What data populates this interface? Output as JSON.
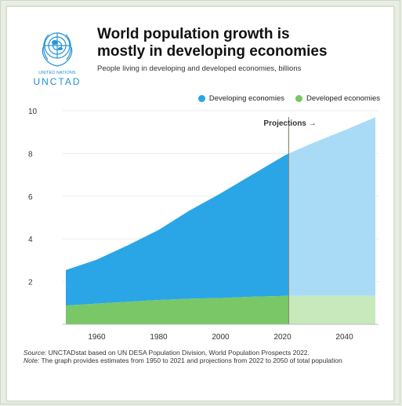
{
  "logo": {
    "org_line": "UNITED NATIONS",
    "org_name": "UNCTAD"
  },
  "title_line1": "World population growth is",
  "title_line2": "mostly in developing economies",
  "subtitle": "People living in developing and developed economies, billions",
  "legend": {
    "developing": "Developing economies",
    "developed": "Developed economies"
  },
  "projections_label": "Projections →",
  "source_label": "Source:",
  "source_text": " UNCTADstat based on UN DESA Population Division, World Population Prospects 2022.",
  "note_label": "Note:",
  "note_text": " The graph provides estimates from 1950 to 2021 and projections from 2022 to 2050 of total population",
  "colors": {
    "developing": "#2aa6e6",
    "developing_projection": "#a9dbf6",
    "developed": "#79c767",
    "developed_projection": "#c7e9bb",
    "projection_line": "#8d8a78"
  },
  "chart_data": {
    "type": "area",
    "stacked": true,
    "x": [
      1950,
      1960,
      1970,
      1980,
      1990,
      2000,
      2010,
      2021,
      2030,
      2040,
      2050
    ],
    "projection_start": 2022,
    "series": [
      {
        "name": "Developed economies",
        "values": [
          0.88,
          0.97,
          1.06,
          1.14,
          1.2,
          1.23,
          1.29,
          1.33,
          1.34,
          1.34,
          1.34
        ]
      },
      {
        "name": "Developing economies",
        "values": [
          1.66,
          2.06,
          2.64,
          3.28,
          4.13,
          4.9,
          5.7,
          6.6,
          7.16,
          7.74,
          8.36
        ]
      }
    ],
    "xticks": [
      1960,
      1980,
      2000,
      2020,
      2040
    ],
    "yticks": [
      2,
      4,
      6,
      8,
      10
    ],
    "xlim": [
      1949,
      2051
    ],
    "ylim": [
      0,
      10
    ],
    "grid": "horizontal",
    "legend_position": "top-right"
  }
}
